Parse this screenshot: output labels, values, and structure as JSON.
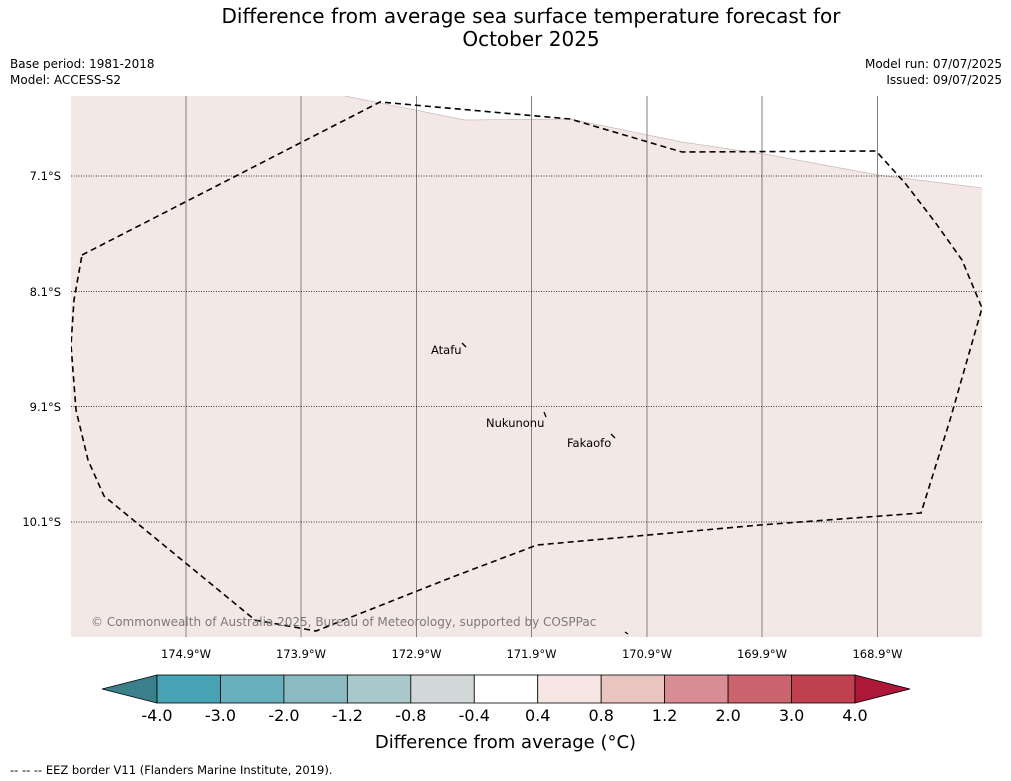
{
  "title_line1": "Difference from average sea surface temperature forecast for",
  "title_line2": "October 2025",
  "meta": {
    "base_period": "Base period: 1981-2018",
    "model": "Model: ACCESS-S2",
    "model_run": "Model run: 07/07/2025",
    "issued": "Issued: 09/07/2025"
  },
  "map": {
    "land_color": "#f4e8e7",
    "lat_labels": [
      "7.1°S",
      "8.1°S",
      "9.1°S",
      "10.1°S"
    ],
    "lon_labels": [
      "174.9°W",
      "173.9°W",
      "172.9°W",
      "171.9°W",
      "170.9°W",
      "169.9°W",
      "168.9°W"
    ],
    "places": [
      {
        "name": "Atafu",
        "label": "Atafu"
      },
      {
        "name": "Nukunonu",
        "label": "Nukunonu"
      },
      {
        "name": "Fakaofo",
        "label": "Fakaofo"
      }
    ],
    "copyright": "© Commonwealth of Australia 2025, Bureau of Meteorology, supported by COSPPac"
  },
  "colorbar": {
    "ticks": [
      "-4.0",
      "-3.0",
      "-2.0",
      "-1.2",
      "-0.8",
      "-0.4",
      "0.4",
      "0.8",
      "1.2",
      "2.0",
      "3.0",
      "4.0"
    ],
    "colors": [
      "#47a3b3",
      "#6aafbd",
      "#8bbac3",
      "#a9c8cb",
      "#d2d8d8",
      "#ffffff",
      "#f6e6e4",
      "#e9c4c0",
      "#d88c94",
      "#cc6470",
      "#bf4150"
    ],
    "under_color": "#3a7f89",
    "over_color": "#ad1838",
    "label": "Difference from average (°C)"
  },
  "footer": "--  --  -- EEZ border V11 (Flanders Marine Institute, 2019)."
}
